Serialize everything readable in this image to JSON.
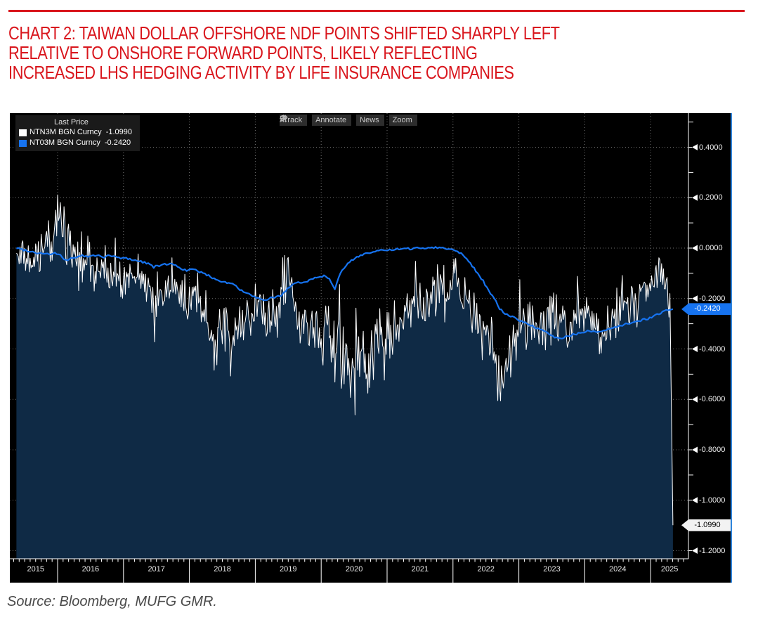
{
  "header": {
    "rule_color": "#d9161d",
    "title": "CHART 2: TAIWAN DOLLAR OFFSHORE NDF POINTS SHIFTED SHARPLY LEFT\nRELATIVE TO ONSHORE FORWARD POINTS, LIKELY REFLECTING\nINCREASED LHS HEDGING ACTIVITY BY LIFE INSURANCE COMPANIES",
    "title_color": "#d9161d"
  },
  "toolbar": {
    "buttons": [
      {
        "label": "Track",
        "icon": "track-crosshair-icon"
      },
      {
        "label": "Annotate",
        "icon": "pencil-icon"
      },
      {
        "label": "News",
        "icon": "news-lines-icon"
      },
      {
        "label": "Zoom",
        "icon": "magnifier-icon"
      }
    ]
  },
  "legend": {
    "header": "Last Price",
    "items": [
      {
        "label": "NTN3M BGN Curncy",
        "value": "-1.0990",
        "swatch_color": "#ffffff"
      },
      {
        "label": "NT03M BGN Curncy",
        "value": "-0.2420",
        "swatch_color": "#1673f0"
      }
    ]
  },
  "axis_tags": {
    "blue_tag": {
      "text": "-0.2420",
      "value": -0.242,
      "bg": "#1673f0",
      "fg": "#ffffff"
    },
    "white_tag": {
      "text": "-1.0990",
      "value": -1.099,
      "bg": "#f2f2f2",
      "fg": "#000000"
    }
  },
  "source": "Source: Bloomberg, MUFG GMR.",
  "colors": {
    "chart_bg": "#000000",
    "chart_right_border": "#2e84dc",
    "grid": "#7e7e7e",
    "axis": "#ffffff",
    "area_fill": "#0f2a45",
    "white_series": "#ffffff",
    "blue_series": "#1673f0"
  },
  "chart_data": {
    "type": "line",
    "description": "Bloomberg chart: TWD 3M offshore NDF points (NTN3M, white, area-filled) vs 3M onshore forward points (NT03M, blue line), daily, May-2015 to May-2025",
    "x_start": "2015-05",
    "x_end": "2025-05",
    "x_tick_labels": [
      "2015",
      "2016",
      "2017",
      "2018",
      "2019",
      "2020",
      "2021",
      "2022",
      "2023",
      "2024",
      "2025"
    ],
    "y_tick_labels": [
      "0.4000",
      "0.2000",
      "0.0000",
      "-0.2000",
      "-0.4000",
      "-0.6000",
      "-0.8000",
      "-1.0000",
      "-1.2000"
    ],
    "y_major_values": [
      0.4,
      0.2,
      0.0,
      -0.2,
      -0.4,
      -0.6,
      -0.8,
      -1.0,
      -1.2
    ],
    "y_minor_values": [
      0.5,
      0.3,
      0.1,
      -0.1,
      -0.3,
      -0.5,
      -0.7,
      -0.9,
      -1.1
    ],
    "ylim": [
      -1.232,
      0.535
    ],
    "grid": "dotted, horizontal at 0.2 steps and vertical at year boundaries",
    "legend_position": "top-left",
    "series": [
      {
        "name": "NTN3M BGN Curncy",
        "display": "white line with dark-navy area fill to bottom, very jagged daily data",
        "color": "#ffffff",
        "fill": "#0f2a45",
        "last_price": -1.099,
        "frequency": "monthly trend estimates read from chart",
        "monthly_trend": [
          -0.02,
          -0.05,
          -0.04,
          -0.08,
          -0.05,
          0,
          0.02,
          0.05,
          0.12,
          0.08,
          0,
          -0.05,
          -0.08,
          -0.06,
          -0.1,
          -0.1,
          -0.1,
          -0.12,
          -0.1,
          -0.14,
          -0.1,
          -0.12,
          -0.1,
          -0.14,
          -0.16,
          -0.18,
          -0.2,
          -0.17,
          -0.15,
          -0.18,
          -0.18,
          -0.2,
          -0.15,
          -0.18,
          -0.22,
          -0.28,
          -0.38,
          -0.33,
          -0.3,
          -0.33,
          -0.3,
          -0.27,
          -0.3,
          -0.26,
          -0.22,
          -0.26,
          -0.3,
          -0.33,
          -0.2,
          -0.08,
          -0.18,
          -0.28,
          -0.32,
          -0.3,
          -0.33,
          -0.35,
          -0.3,
          -0.35,
          -0.42,
          -0.4,
          -0.42,
          -0.45,
          -0.42,
          -0.45,
          -0.42,
          -0.4,
          -0.38,
          -0.4,
          -0.35,
          -0.3,
          -0.33,
          -0.28,
          -0.25,
          -0.22,
          -0.25,
          -0.2,
          -0.16,
          -0.14,
          -0.18,
          -0.15,
          -0.12,
          -0.15,
          -0.2,
          -0.25,
          -0.3,
          -0.35,
          -0.4,
          -0.45,
          -0.55,
          -0.5,
          -0.4,
          -0.35,
          -0.3,
          -0.28,
          -0.32,
          -0.35,
          -0.3,
          -0.28,
          -0.25,
          -0.3,
          -0.35,
          -0.33,
          -0.3,
          -0.28,
          -0.25,
          -0.28,
          -0.32,
          -0.35,
          -0.3,
          -0.28,
          -0.22,
          -0.25,
          -0.2,
          -0.25,
          -0.2,
          -0.15,
          -0.12,
          -0.1,
          -0.15,
          -0.18
        ],
        "monthly_volatility": [
          0.08,
          0.08,
          0.09,
          0.12,
          0.12,
          0.1,
          0.12,
          0.16,
          0.22,
          0.16,
          0.1,
          0.09,
          0.09,
          0.1,
          0.09,
          0.08,
          0.09,
          0.08,
          0.09,
          0.1,
          0.1,
          0.08,
          0.1,
          0.1,
          0.1,
          0.12,
          0.1,
          0.1,
          0.1,
          0.1,
          0.1,
          0.12,
          0.1,
          0.1,
          0.12,
          0.12,
          0.14,
          0.12,
          0.1,
          0.12,
          0.1,
          0.1,
          0.1,
          0.1,
          0.1,
          0.1,
          0.1,
          0.12,
          0.15,
          0.15,
          0.12,
          0.12,
          0.12,
          0.12,
          0.1,
          0.12,
          0.15,
          0.15,
          0.18,
          0.18,
          0.2,
          0.2,
          0.2,
          0.2,
          0.18,
          0.18,
          0.15,
          0.15,
          0.15,
          0.12,
          0.12,
          0.12,
          0.12,
          0.1,
          0.12,
          0.1,
          0.1,
          0.1,
          0.1,
          0.1,
          0.1,
          0.1,
          0.12,
          0.12,
          0.12,
          0.15,
          0.15,
          0.15,
          0.18,
          0.15,
          0.15,
          0.12,
          0.12,
          0.12,
          0.12,
          0.12,
          0.12,
          0.12,
          0.12,
          0.12,
          0.12,
          0.12,
          0.12,
          0.1,
          0.12,
          0.12,
          0.12,
          0.15,
          0.12,
          0.15,
          0.15,
          0.12,
          0.12,
          0.12,
          0.12,
          0.12,
          0.1,
          0.12,
          0.1,
          0.12
        ],
        "final_point": {
          "date": "2025-05",
          "value": -1.099,
          "note": "sharp vertical plunge at right edge"
        }
      },
      {
        "name": "NT03M BGN Curncy",
        "display": "smooth blue line, no fill",
        "color": "#1673f0",
        "last_price": -0.242,
        "frequency": "monthly trend estimates read from chart",
        "monthly": [
          0,
          -0.005,
          -0.01,
          -0.015,
          -0.02,
          -0.02,
          -0.025,
          -0.02,
          -0.03,
          -0.05,
          -0.04,
          -0.035,
          -0.03,
          -0.035,
          -0.03,
          -0.03,
          -0.035,
          -0.03,
          -0.035,
          -0.04,
          -0.04,
          -0.045,
          -0.05,
          -0.055,
          -0.06,
          -0.075,
          -0.07,
          -0.065,
          -0.06,
          -0.07,
          -0.08,
          -0.09,
          -0.085,
          -0.09,
          -0.1,
          -0.11,
          -0.12,
          -0.13,
          -0.135,
          -0.14,
          -0.15,
          -0.17,
          -0.18,
          -0.19,
          -0.2,
          -0.21,
          -0.2,
          -0.195,
          -0.19,
          -0.17,
          -0.15,
          -0.14,
          -0.135,
          -0.13,
          -0.12,
          -0.115,
          -0.11,
          -0.12,
          -0.16,
          -0.1,
          -0.07,
          -0.05,
          -0.035,
          -0.025,
          -0.02,
          -0.015,
          -0.01,
          -0.01,
          -0.008,
          -0.005,
          -0.005,
          -0.003,
          -0.002,
          0,
          0,
          0.002,
          0.003,
          0.002,
          0,
          -0.005,
          -0.01,
          -0.02,
          -0.04,
          -0.07,
          -0.1,
          -0.13,
          -0.17,
          -0.2,
          -0.24,
          -0.26,
          -0.27,
          -0.28,
          -0.29,
          -0.3,
          -0.31,
          -0.32,
          -0.33,
          -0.34,
          -0.355,
          -0.36,
          -0.35,
          -0.345,
          -0.34,
          -0.335,
          -0.33,
          -0.33,
          -0.335,
          -0.33,
          -0.32,
          -0.315,
          -0.31,
          -0.3,
          -0.295,
          -0.29,
          -0.285,
          -0.28,
          -0.27,
          -0.26,
          -0.25,
          -0.245
        ],
        "final_point": {
          "date": "2025-05",
          "value": -0.242
        }
      }
    ]
  }
}
